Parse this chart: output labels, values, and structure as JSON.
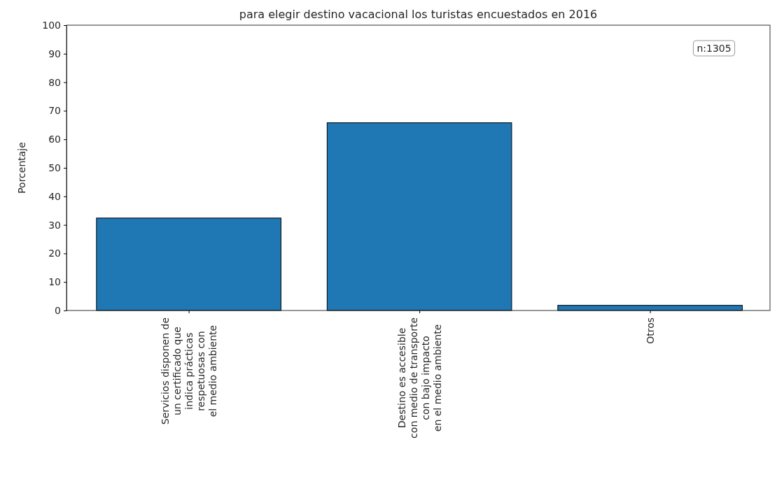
{
  "chart_data": {
    "type": "bar",
    "title": "para elegir destino vacacional los turistas encuestados en 2016",
    "ylabel": "Porcentaje",
    "categories": [
      "Servicios disponen de\nun certificado que\nindica prácticas\nrespetuosas con\nel medio ambiente",
      "Destino es accesible\ncon medio de transporte\ncon bajo impacto\nen el medio ambiente",
      "Otros"
    ],
    "values": [
      32.4,
      65.8,
      1.8
    ],
    "color": "#1f77b4",
    "ylim": [
      0,
      100
    ],
    "yticks": [
      0,
      10,
      20,
      30,
      40,
      50,
      60,
      70,
      80,
      90,
      100
    ],
    "annotations": [
      "n:1305"
    ],
    "grid": false
  }
}
